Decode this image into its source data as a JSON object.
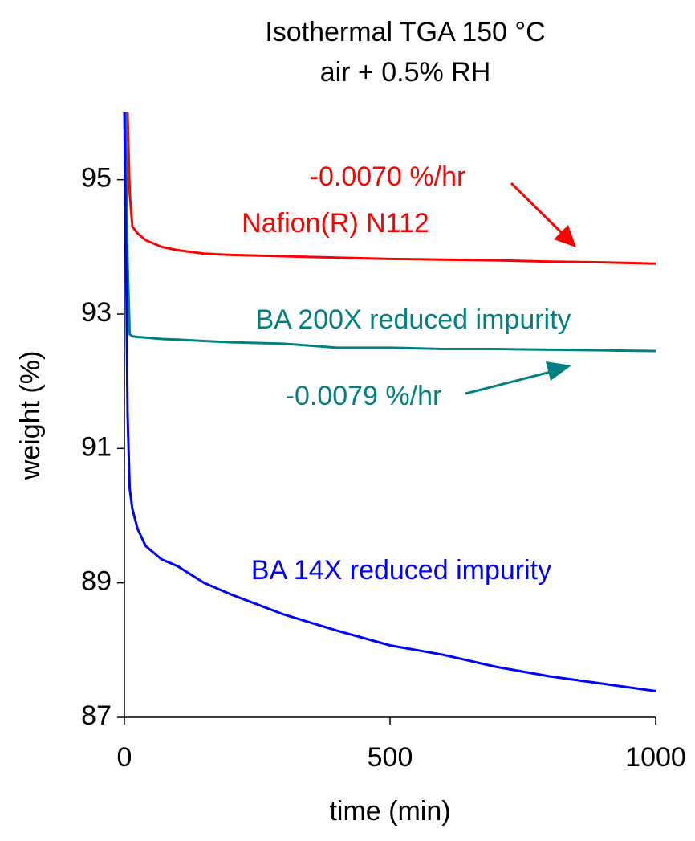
{
  "chart_data": {
    "type": "line",
    "title": [
      "Isothermal TGA 150 °C",
      "air +  0.5% RH"
    ],
    "x_label": "time (min)",
    "y_label": "weight (%)",
    "x": [
      0,
      3,
      6,
      10,
      15,
      25,
      40,
      70,
      100,
      150,
      200,
      300,
      400,
      500,
      600,
      700,
      800,
      900,
      1000
    ],
    "series": [
      {
        "name": "Nafion(R) N112",
        "color": "#ff0000",
        "values": [
          96,
          96,
          96,
          94.8,
          94.3,
          94.2,
          94.1,
          94.0,
          93.95,
          93.9,
          93.88,
          93.86,
          93.84,
          93.82,
          93.81,
          93.8,
          93.78,
          93.77,
          93.75
        ]
      },
      {
        "name": "BA 200X reduced impurity",
        "color": "#008080",
        "values": [
          96,
          96,
          93.8,
          92.7,
          92.67,
          92.66,
          92.65,
          92.63,
          92.62,
          92.6,
          92.58,
          92.56,
          92.5,
          92.5,
          92.48,
          92.48,
          92.47,
          92.46,
          92.45
        ]
      },
      {
        "name": "BA 14X reduced impurity",
        "color": "#0000ff",
        "values": [
          96,
          94,
          91.5,
          90.4,
          90.1,
          89.8,
          89.55,
          89.35,
          89.25,
          89.0,
          88.83,
          88.53,
          88.29,
          88.07,
          87.93,
          87.75,
          87.61,
          87.5,
          87.39
        ]
      }
    ],
    "annotations": [
      "-0.0070 %/hr",
      "-0.0079 %/hr"
    ],
    "xlim": [
      0,
      1000
    ],
    "xticks": [
      0,
      500,
      1000
    ],
    "ylim": [
      87,
      96
    ],
    "yticks": [
      87,
      89,
      91,
      93,
      95
    ],
    "grid": false
  }
}
